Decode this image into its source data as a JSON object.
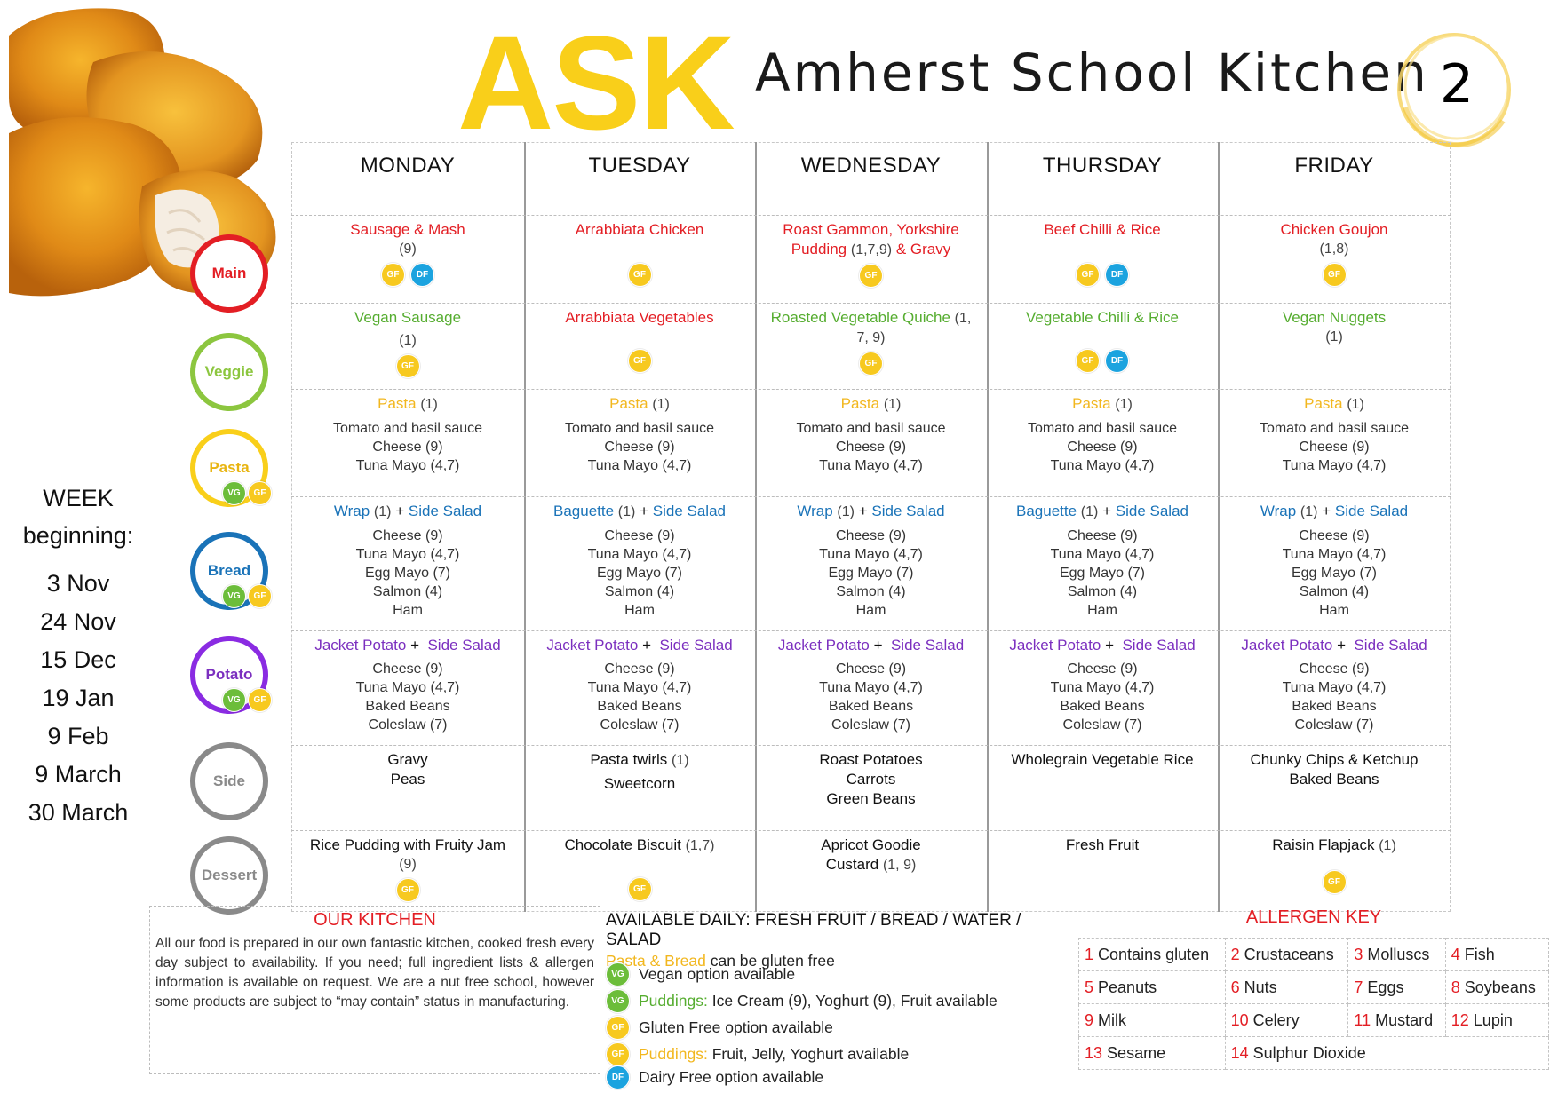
{
  "header": {
    "brand": "ASK",
    "subtitle": "Amherst School Kitchen",
    "week_number": "2"
  },
  "week_panel": {
    "title_line1": "WEEK",
    "title_line2": "beginning:",
    "dates": [
      "3 Nov",
      "24 Nov",
      "15 Dec",
      "19 Jan",
      "9 Feb",
      "9 March",
      "30 March"
    ]
  },
  "categories": [
    {
      "label": "Main",
      "color": "#e31e24"
    },
    {
      "label": "Veggie",
      "color": "#8cc63f"
    },
    {
      "label": "Pasta",
      "color": "#f9cf1a"
    },
    {
      "label": "Bread",
      "color": "#1a73b8"
    },
    {
      "label": "Potato",
      "color": "#8a2be2"
    },
    {
      "label": "Side",
      "color": "#8a8a8a"
    },
    {
      "label": "Dessert",
      "color": "#8a8a8a"
    }
  ],
  "badge_labels": {
    "gf": "GF",
    "df": "DF",
    "vg": "VG"
  },
  "days": [
    "MONDAY",
    "TUESDAY",
    "WEDNESDAY",
    "THURSDAY",
    "FRIDAY"
  ],
  "menu": {
    "main": [
      {
        "name": "Sausage & Mash",
        "allergens": "(9)"
      },
      {
        "name": "Arrabbiata Chicken"
      },
      {
        "name": "Roast Gammon, Yorkshire",
        "name2": "Pudding",
        "allergens": "(1,7,9)",
        "name3": "& Gravy"
      },
      {
        "name": "Beef Chilli & Rice"
      },
      {
        "name": "Chicken Goujon",
        "allergens": "(1,8)"
      }
    ],
    "veggie": [
      {
        "name": "Vegan Sausage",
        "allergens": "(1)"
      },
      {
        "name": "Arrabbiata Vegetables"
      },
      {
        "name": "Roasted Vegetable Quiche",
        "allergens": "(1,",
        "allergens2": "7, 9)"
      },
      {
        "name": "Vegetable Chilli & Rice"
      },
      {
        "name": "Vegan Nuggets",
        "allergens": "(1)"
      }
    ],
    "pasta": {
      "name": "Pasta",
      "allergens": "(1)",
      "options": [
        "Tomato and basil sauce",
        "Cheese (9)",
        "Tuna Mayo (4,7)"
      ]
    },
    "bread": [
      {
        "name": "Wrap",
        "allergens": "(1)",
        "plus": "+",
        "side": "Side Salad"
      },
      {
        "name": "Baguette",
        "allergens": "(1)",
        "plus": "+",
        "side": "Side Salad"
      },
      {
        "name": "Wrap",
        "allergens": "(1)",
        "plus": "+",
        "side": "Side Salad"
      },
      {
        "name": "Baguette",
        "allergens": "(1)",
        "plus": "+",
        "side": "Side Salad"
      },
      {
        "name": "Wrap",
        "allergens": "(1)",
        "plus": "+",
        "side": "Side Salad"
      }
    ],
    "bread_options": [
      "Cheese (9)",
      "Tuna Mayo (4,7)",
      "Egg Mayo (7)",
      "Salmon (4)",
      "Ham"
    ],
    "potato": {
      "name": "Jacket Potato",
      "plus": "+",
      "side": "Side Salad",
      "options": [
        "Cheese (9)",
        "Tuna Mayo (4,7)",
        "Baked Beans",
        "Coleslaw (7)"
      ]
    },
    "side": [
      {
        "lines": [
          "Gravy",
          "Peas"
        ]
      },
      {
        "lines": [
          "Pasta twirls"
        ],
        "allergens": "(1)",
        "lines2": [
          "Sweetcorn"
        ]
      },
      {
        "lines": [
          "Roast Potatoes",
          "Carrots",
          "Green Beans"
        ]
      },
      {
        "lines": [
          "Wholegrain Vegetable Rice"
        ]
      },
      {
        "lines": [
          "Chunky Chips & Ketchup",
          "Baked Beans"
        ]
      }
    ],
    "dessert": [
      {
        "name": "Rice Pudding with Fruity Jam",
        "allergens": "(9)"
      },
      {
        "name": "Chocolate Biscuit",
        "allergens": "(1,7)"
      },
      {
        "name": "Apricot Goodie",
        "name2": "Custard",
        "allergens": "(1, 9)"
      },
      {
        "name": "Fresh Fruit"
      },
      {
        "name": "Raisin Flapjack",
        "allergens": "(1)"
      }
    ]
  },
  "footer": {
    "kitchen_title": "OUR KITCHEN",
    "kitchen_text": "All our food is prepared in our own fantastic kitchen, cooked fresh every day subject to availability. If you need; full ingredient lists & allergen  information is available on request. We are a nut free school, however some products are subject to “may contain” status in manufacturing.",
    "daily_title": "AVAILABLE DAILY:  FRESH FRUIT / BREAD / WATER / SALAD",
    "gluten_free_prefix": "Pasta & Bread",
    "gluten_free_suffix": "can be gluten free",
    "legend": [
      {
        "badge": "VG",
        "text": "Vegan option available"
      },
      {
        "badge": "VG",
        "prefix": "Puddings:",
        "text": "Ice Cream (9), Yoghurt (9), Fruit available"
      },
      {
        "badge": "GF",
        "text": "Gluten Free option available"
      },
      {
        "badge": "GF",
        "prefix": "Puddings:",
        "text": " Fruit, Jelly, Yoghurt available"
      },
      {
        "badge": "DF",
        "text": "Dairy Free option available"
      }
    ],
    "allergen_title": "ALLERGEN KEY",
    "allergens": [
      [
        {
          "n": "1",
          "t": "Contains gluten"
        },
        {
          "n": "2",
          "t": "Crustaceans"
        },
        {
          "n": "3",
          "t": "Molluscs"
        },
        {
          "n": "4",
          "t": "Fish"
        }
      ],
      [
        {
          "n": "5",
          "t": "Peanuts"
        },
        {
          "n": "6",
          "t": "Nuts"
        },
        {
          "n": "7",
          "t": "Eggs"
        },
        {
          "n": "8",
          "t": "Soybeans"
        }
      ],
      [
        {
          "n": "9",
          "t": "Milk"
        },
        {
          "n": "10",
          "t": "Celery"
        },
        {
          "n": "11",
          "t": "Mustard"
        },
        {
          "n": "12",
          "t": "Lupin"
        }
      ],
      [
        {
          "n": "13",
          "t": "Sesame"
        },
        {
          "n": "14",
          "t": "Sulphur Dioxide"
        }
      ]
    ]
  }
}
